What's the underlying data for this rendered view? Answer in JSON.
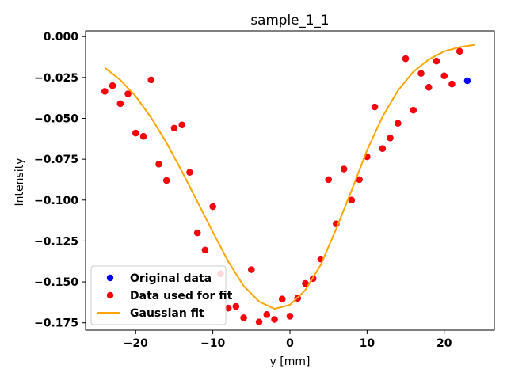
{
  "chart_data": {
    "type": "scatter",
    "title": "sample_1_1",
    "xlabel": "y [mm]",
    "ylabel": "Intensity",
    "xlim": [
      -26.5,
      26.5
    ],
    "ylim": [
      -0.1795,
      0.0035
    ],
    "xticks": [
      -20,
      -10,
      0,
      10,
      20
    ],
    "xtick_labels": [
      "−20",
      "−10",
      "0",
      "10",
      "20"
    ],
    "yticks": [
      0.0,
      -0.025,
      -0.05,
      -0.075,
      -0.1,
      -0.125,
      -0.15,
      -0.175
    ],
    "ytick_labels": [
      "0.000",
      "−0.025",
      "−0.050",
      "−0.075",
      "−0.100",
      "−0.125",
      "−0.150",
      "−0.175"
    ],
    "grid": false,
    "legend_position": "lower-left",
    "colors": {
      "original": "#0000ff",
      "fit_data": "#ff0000",
      "fit_line": "#ffa500"
    },
    "series": [
      {
        "name": "Original data",
        "kind": "scatter",
        "x": [
          -24,
          -23,
          -22,
          -21,
          -20,
          -19,
          -18,
          -17,
          -16,
          -15,
          -14,
          -13,
          -12,
          -11,
          -10,
          -9,
          -8,
          -7,
          -6,
          -5,
          -4,
          -3,
          -2,
          -1,
          0,
          1,
          2,
          3,
          4,
          5,
          6,
          7,
          8,
          9,
          10,
          11,
          12,
          13,
          14,
          15,
          16,
          17,
          18,
          19,
          20,
          21,
          22,
          23
        ],
        "y": [
          -0.0335,
          -0.03,
          -0.041,
          -0.035,
          -0.059,
          -0.061,
          -0.0265,
          -0.078,
          -0.088,
          -0.056,
          -0.054,
          -0.083,
          -0.12,
          -0.1305,
          -0.104,
          -0.145,
          -0.166,
          -0.165,
          -0.172,
          -0.1425,
          -0.1745,
          -0.17,
          -0.173,
          -0.1605,
          -0.171,
          -0.16,
          -0.151,
          -0.148,
          -0.136,
          -0.0875,
          -0.1145,
          -0.081,
          -0.1,
          -0.0875,
          -0.0735,
          -0.043,
          -0.0685,
          -0.062,
          -0.053,
          -0.0135,
          -0.045,
          -0.0225,
          -0.031,
          -0.015,
          -0.024,
          -0.029,
          -0.009,
          -0.027
        ]
      },
      {
        "name": "Data used for fit",
        "kind": "scatter",
        "x": [
          -24,
          -23,
          -22,
          -21,
          -20,
          -19,
          -18,
          -17,
          -16,
          -15,
          -14,
          -13,
          -12,
          -11,
          -10,
          -9,
          -8,
          -7,
          -6,
          -5,
          -4,
          -3,
          -2,
          -1,
          0,
          1,
          2,
          3,
          4,
          5,
          6,
          7,
          8,
          9,
          10,
          11,
          12,
          13,
          14,
          15,
          16,
          17,
          18,
          19,
          20,
          21,
          22
        ],
        "y": [
          -0.0335,
          -0.03,
          -0.041,
          -0.035,
          -0.059,
          -0.061,
          -0.0265,
          -0.078,
          -0.088,
          -0.056,
          -0.054,
          -0.083,
          -0.12,
          -0.1305,
          -0.104,
          -0.145,
          -0.166,
          -0.165,
          -0.172,
          -0.1425,
          -0.1745,
          -0.17,
          -0.173,
          -0.1605,
          -0.171,
          -0.16,
          -0.151,
          -0.148,
          -0.136,
          -0.0875,
          -0.1145,
          -0.081,
          -0.1,
          -0.0875,
          -0.0735,
          -0.043,
          -0.0685,
          -0.062,
          -0.053,
          -0.0135,
          -0.045,
          -0.0225,
          -0.031,
          -0.015,
          -0.024,
          -0.029,
          -0.009
        ]
      },
      {
        "name": "Gaussian fit",
        "kind": "line",
        "x": [
          -24,
          -22,
          -20,
          -18,
          -16,
          -14,
          -12,
          -10,
          -8,
          -6,
          -4,
          -2,
          0,
          2,
          4,
          6,
          8,
          10,
          12,
          14,
          16,
          18,
          20,
          22,
          24
        ],
        "y": [
          -0.019,
          -0.0265,
          -0.0365,
          -0.0495,
          -0.065,
          -0.0825,
          -0.101,
          -0.1195,
          -0.1375,
          -0.1525,
          -0.162,
          -0.1665,
          -0.164,
          -0.155,
          -0.1395,
          -0.1175,
          -0.094,
          -0.0695,
          -0.049,
          -0.033,
          -0.0215,
          -0.014,
          -0.009,
          -0.0065,
          -0.005
        ]
      }
    ]
  }
}
